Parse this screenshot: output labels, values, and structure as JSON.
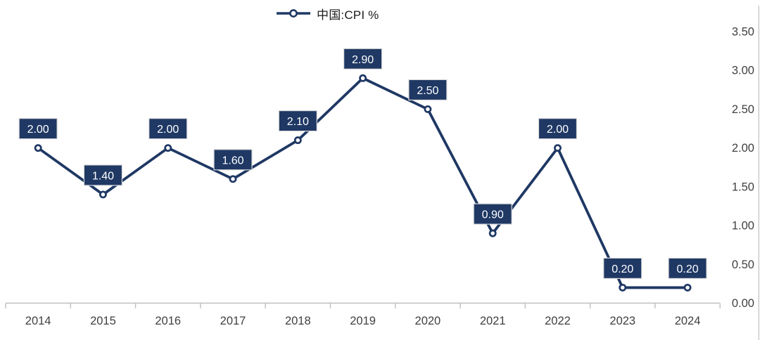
{
  "chart_data": {
    "type": "line",
    "title": "",
    "legend": "中国:CPI %",
    "legend_position": "top-center",
    "categories": [
      "2014",
      "2015",
      "2016",
      "2017",
      "2018",
      "2019",
      "2020",
      "2021",
      "2022",
      "2023",
      "2024"
    ],
    "series": [
      {
        "name": "中国:CPI %",
        "values": [
          2.0,
          1.4,
          2.0,
          1.6,
          2.1,
          2.9,
          2.5,
          0.9,
          2.0,
          0.2,
          0.2
        ]
      }
    ],
    "data_labels": [
      "2.00",
      "1.40",
      "2.00",
      "1.60",
      "2.10",
      "2.90",
      "2.50",
      "0.90",
      "2.00",
      "0.20",
      "0.20"
    ],
    "xlabel": "",
    "ylabel": "",
    "y_axis": {
      "side": "right",
      "min": 0.0,
      "max": 3.5,
      "step": 0.5,
      "tick_labels": [
        "0.00",
        "0.50",
        "1.00",
        "1.50",
        "2.00",
        "2.50",
        "3.00",
        "3.50"
      ]
    },
    "grid": false,
    "colors": {
      "line": "#1F3864",
      "marker_ring": "#1F3864",
      "marker_fill": "#FFFFFF",
      "label_bg": "#1F3864",
      "label_text": "#FFFFFF",
      "label_border": "#D9D9D9",
      "axis": "#C0C0C0",
      "right_border": "#C8C8C8",
      "tick_text": "#404040",
      "legend_text": "#1A1A1A"
    }
  }
}
